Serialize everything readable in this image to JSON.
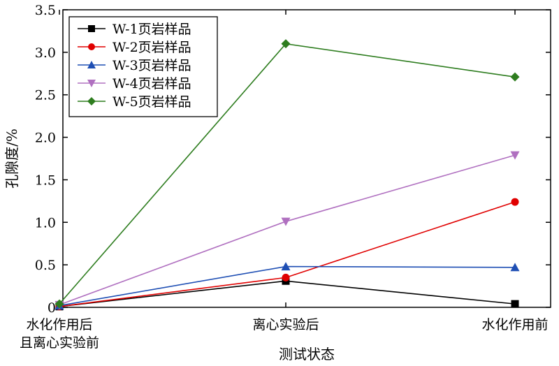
{
  "chart_data": {
    "type": "line",
    "title": "",
    "xlabel": "测试状态",
    "ylabel": "孔隙度/%",
    "categories": [
      [
        "水化作用后",
        "且离心实验前"
      ],
      [
        "离心实验后"
      ],
      [
        "水化作用前"
      ]
    ],
    "ylim": [
      0,
      3.5
    ],
    "yticks": [
      "0",
      "0.5",
      "1.0",
      "1.5",
      "2.0",
      "2.5",
      "3.0",
      "3.5"
    ],
    "grid": false,
    "legend_position": "top-left",
    "series": [
      {
        "name": "W-1页岩样品",
        "values": [
          0.01,
          0.31,
          0.04
        ],
        "color": "#000000",
        "marker": "square"
      },
      {
        "name": "W-2页岩样品",
        "values": [
          0.01,
          0.35,
          1.24
        ],
        "color": "#e00000",
        "marker": "circle"
      },
      {
        "name": "W-3页岩样品",
        "values": [
          0.02,
          0.48,
          0.47
        ],
        "color": "#1f4fb4",
        "marker": "triangle-up"
      },
      {
        "name": "W-4页岩样品",
        "values": [
          0.03,
          1.01,
          1.79
        ],
        "color": "#b070c0",
        "marker": "triangle-down"
      },
      {
        "name": "W-5页岩样品",
        "values": [
          0.04,
          3.1,
          2.71
        ],
        "color": "#2e7d1f",
        "marker": "diamond"
      }
    ]
  }
}
